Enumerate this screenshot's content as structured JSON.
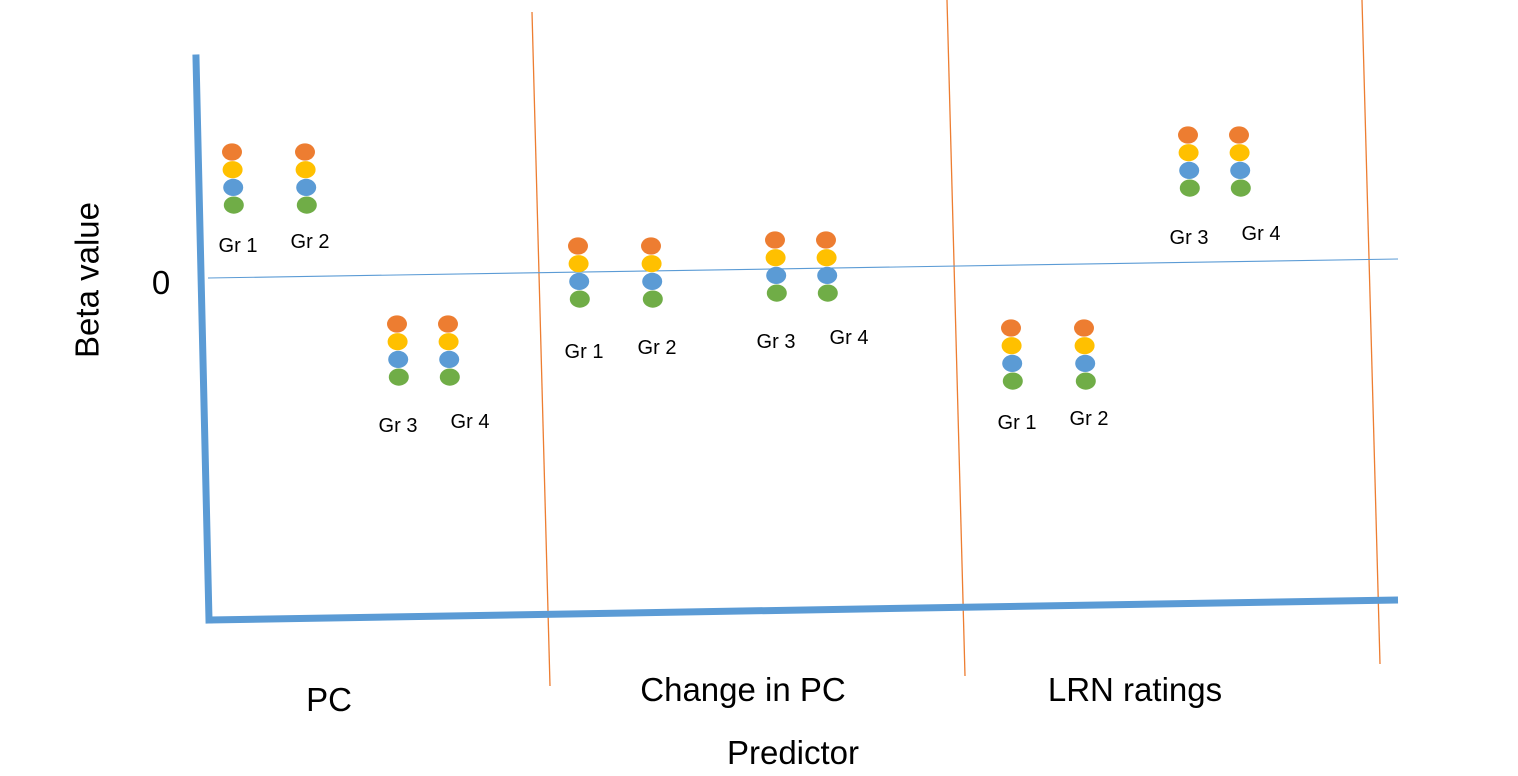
{
  "ylabel": "Beta value",
  "zero_label": "0",
  "xlabel": "Predictor",
  "panels": [
    {
      "label": "PC",
      "groups": [
        {
          "name": "Gr 1",
          "level": "above zero"
        },
        {
          "name": "Gr 2",
          "level": "above zero"
        },
        {
          "name": "Gr 3",
          "level": "below zero"
        },
        {
          "name": "Gr 4",
          "level": "below zero"
        }
      ]
    },
    {
      "label": "Change in PC",
      "groups": [
        {
          "name": "Gr 1",
          "level": "at zero"
        },
        {
          "name": "Gr 2",
          "level": "at zero"
        },
        {
          "name": "Gr 3",
          "level": "at zero"
        },
        {
          "name": "Gr 4",
          "level": "at zero"
        }
      ]
    },
    {
      "label": "LRN ratings",
      "groups": [
        {
          "name": "Gr 1",
          "level": "below zero"
        },
        {
          "name": "Gr 2",
          "level": "below zero"
        },
        {
          "name": "Gr 3",
          "level": "above zero"
        },
        {
          "name": "Gr 4",
          "level": "above zero"
        }
      ]
    }
  ],
  "colors": {
    "axis": "#5b9bd5",
    "zero_line": "#5b9bd5",
    "dividers": "#ed7d31",
    "dot_stack": [
      "#ed7d31",
      "#ffc000",
      "#5b9bd5",
      "#70ad47"
    ]
  }
}
